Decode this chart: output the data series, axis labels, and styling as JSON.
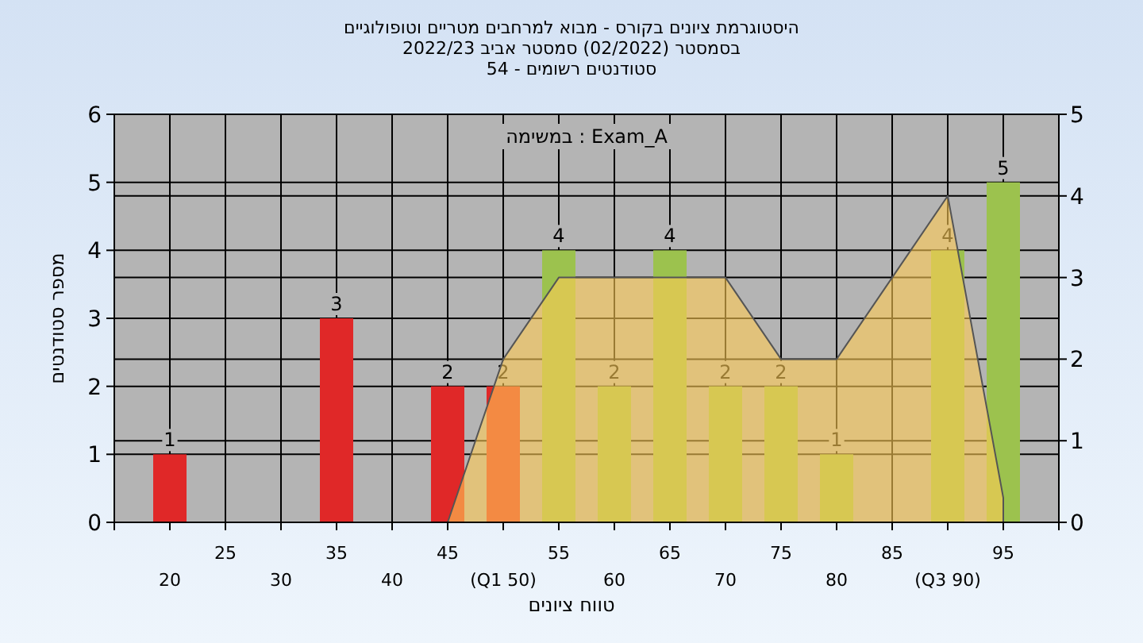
{
  "chart_data": {
    "type": "bar",
    "title": "היסטוגרמת ציונים בקורס - מבוא למרחבים מטריים וטופולוגיים",
    "subtitle": "בסמסטר (02/2022) סמסטר אביב 2022/23\nסטודנטים רשומים - 54",
    "xlabel": "טווח ציונים",
    "ylabel": "מספר סטודנטים",
    "annotations": [
      "במשימה : Exam_A"
    ],
    "categories": [
      "20",
      "25",
      "30",
      "35",
      "40",
      "45",
      "(Q1 50)",
      "55",
      "60",
      "65",
      "70",
      "75",
      "80",
      "85",
      "(Q3 90)",
      "95"
    ],
    "series": [
      {
        "values": [
          1,
          0,
          0,
          3,
          0,
          2,
          2,
          4,
          2,
          4,
          2,
          2,
          1,
          0,
          4,
          5
        ],
        "colors": [
          "#e02828",
          "#e02828",
          "#e02828",
          "#e02828",
          "#e02828",
          "#e02828",
          "#e02828",
          "#9cc24e",
          "#9cc24e",
          "#9cc24e",
          "#9cc24e",
          "#9cc24e",
          "#9cc24e",
          "#9cc24e",
          "#9cc24e",
          "#9cc24e"
        ],
        "value_labels": [
          "1",
          null,
          null,
          "3",
          null,
          "2",
          "2",
          "4",
          "2",
          "4",
          "2",
          "2",
          "1",
          null,
          "4",
          "5"
        ]
      },
      {
        "type": "area",
        "axis": "y2",
        "color": "#ffcc55",
        "values": [
          null,
          null,
          null,
          null,
          null,
          0,
          2,
          3,
          3,
          3,
          3,
          2,
          2,
          3,
          4,
          0.3
        ]
      }
    ],
    "ylim": [
      0,
      6
    ],
    "yticks": [
      0,
      1,
      2,
      3,
      4,
      5,
      6
    ],
    "y2lim": [
      0,
      5
    ],
    "y2ticks": [
      0,
      1,
      2,
      3,
      4,
      5
    ],
    "grid": true
  }
}
